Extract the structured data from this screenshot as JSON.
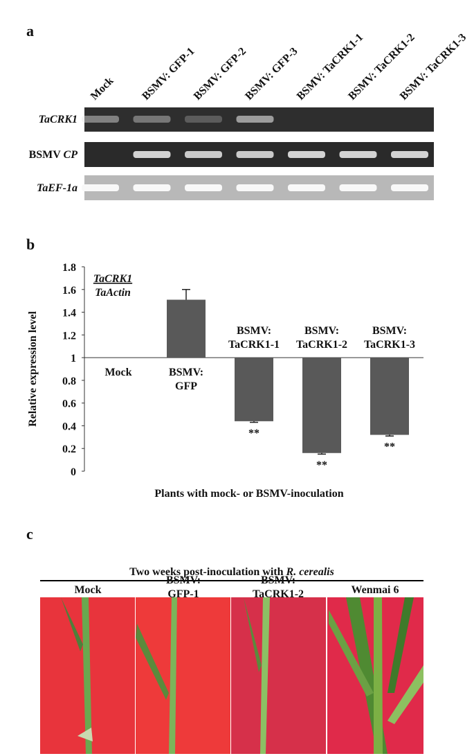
{
  "panel_a": {
    "label": "a",
    "lanes": [
      "Mock",
      "BSMV: GFP-1",
      "BSMV: GFP-2",
      "BSMV: GFP-3",
      "BSMV: TaCRK1-1",
      "BSMV: TaCRK1-2",
      "BSMV: TaCRK1-3"
    ],
    "rows": [
      {
        "italic": "TaCRK1"
      },
      {
        "plain": "BSMV ",
        "italic": "CP"
      },
      {
        "italic": "TaEF-1a"
      }
    ]
  },
  "chart_data": {
    "type": "bar",
    "label": "b",
    "y_label": "Relative expression level",
    "ratio": {
      "numerator": "TaCRK1",
      "denominator": "TaActin"
    },
    "x_label": "Plants with mock- or BSMV-inoculation",
    "categories": [
      [
        "Mock"
      ],
      [
        "BSMV:",
        "GFP"
      ],
      [
        "BSMV:",
        "TaCRK1-1"
      ],
      [
        "BSMV:",
        "TaCRK1-2"
      ],
      [
        "BSMV:",
        "TaCRK1-3"
      ]
    ],
    "values": [
      1,
      1.51,
      0.44,
      0.16,
      0.32
    ],
    "errors": [
      null,
      0.09,
      0.01,
      0.01,
      0.01
    ],
    "annotations": [
      null,
      null,
      "**",
      "**",
      "**"
    ],
    "baseline": 1,
    "color": "#595959",
    "ylim": [
      0,
      1.8
    ],
    "yticks": [
      0,
      0.2,
      0.4,
      0.6,
      0.8,
      1,
      1.2,
      1.4,
      1.6,
      1.8
    ],
    "grid": false
  },
  "panel_c": {
    "label": "c",
    "title": {
      "plain": "Two weeks post-inoculation with ",
      "italic": "R. cerealis"
    },
    "columns": [
      [
        "Mock"
      ],
      [
        "BSMV:",
        "GFP-1"
      ],
      [
        "BSMV:",
        "TaCRK1-2"
      ],
      [
        "Wenmai 6"
      ]
    ]
  }
}
